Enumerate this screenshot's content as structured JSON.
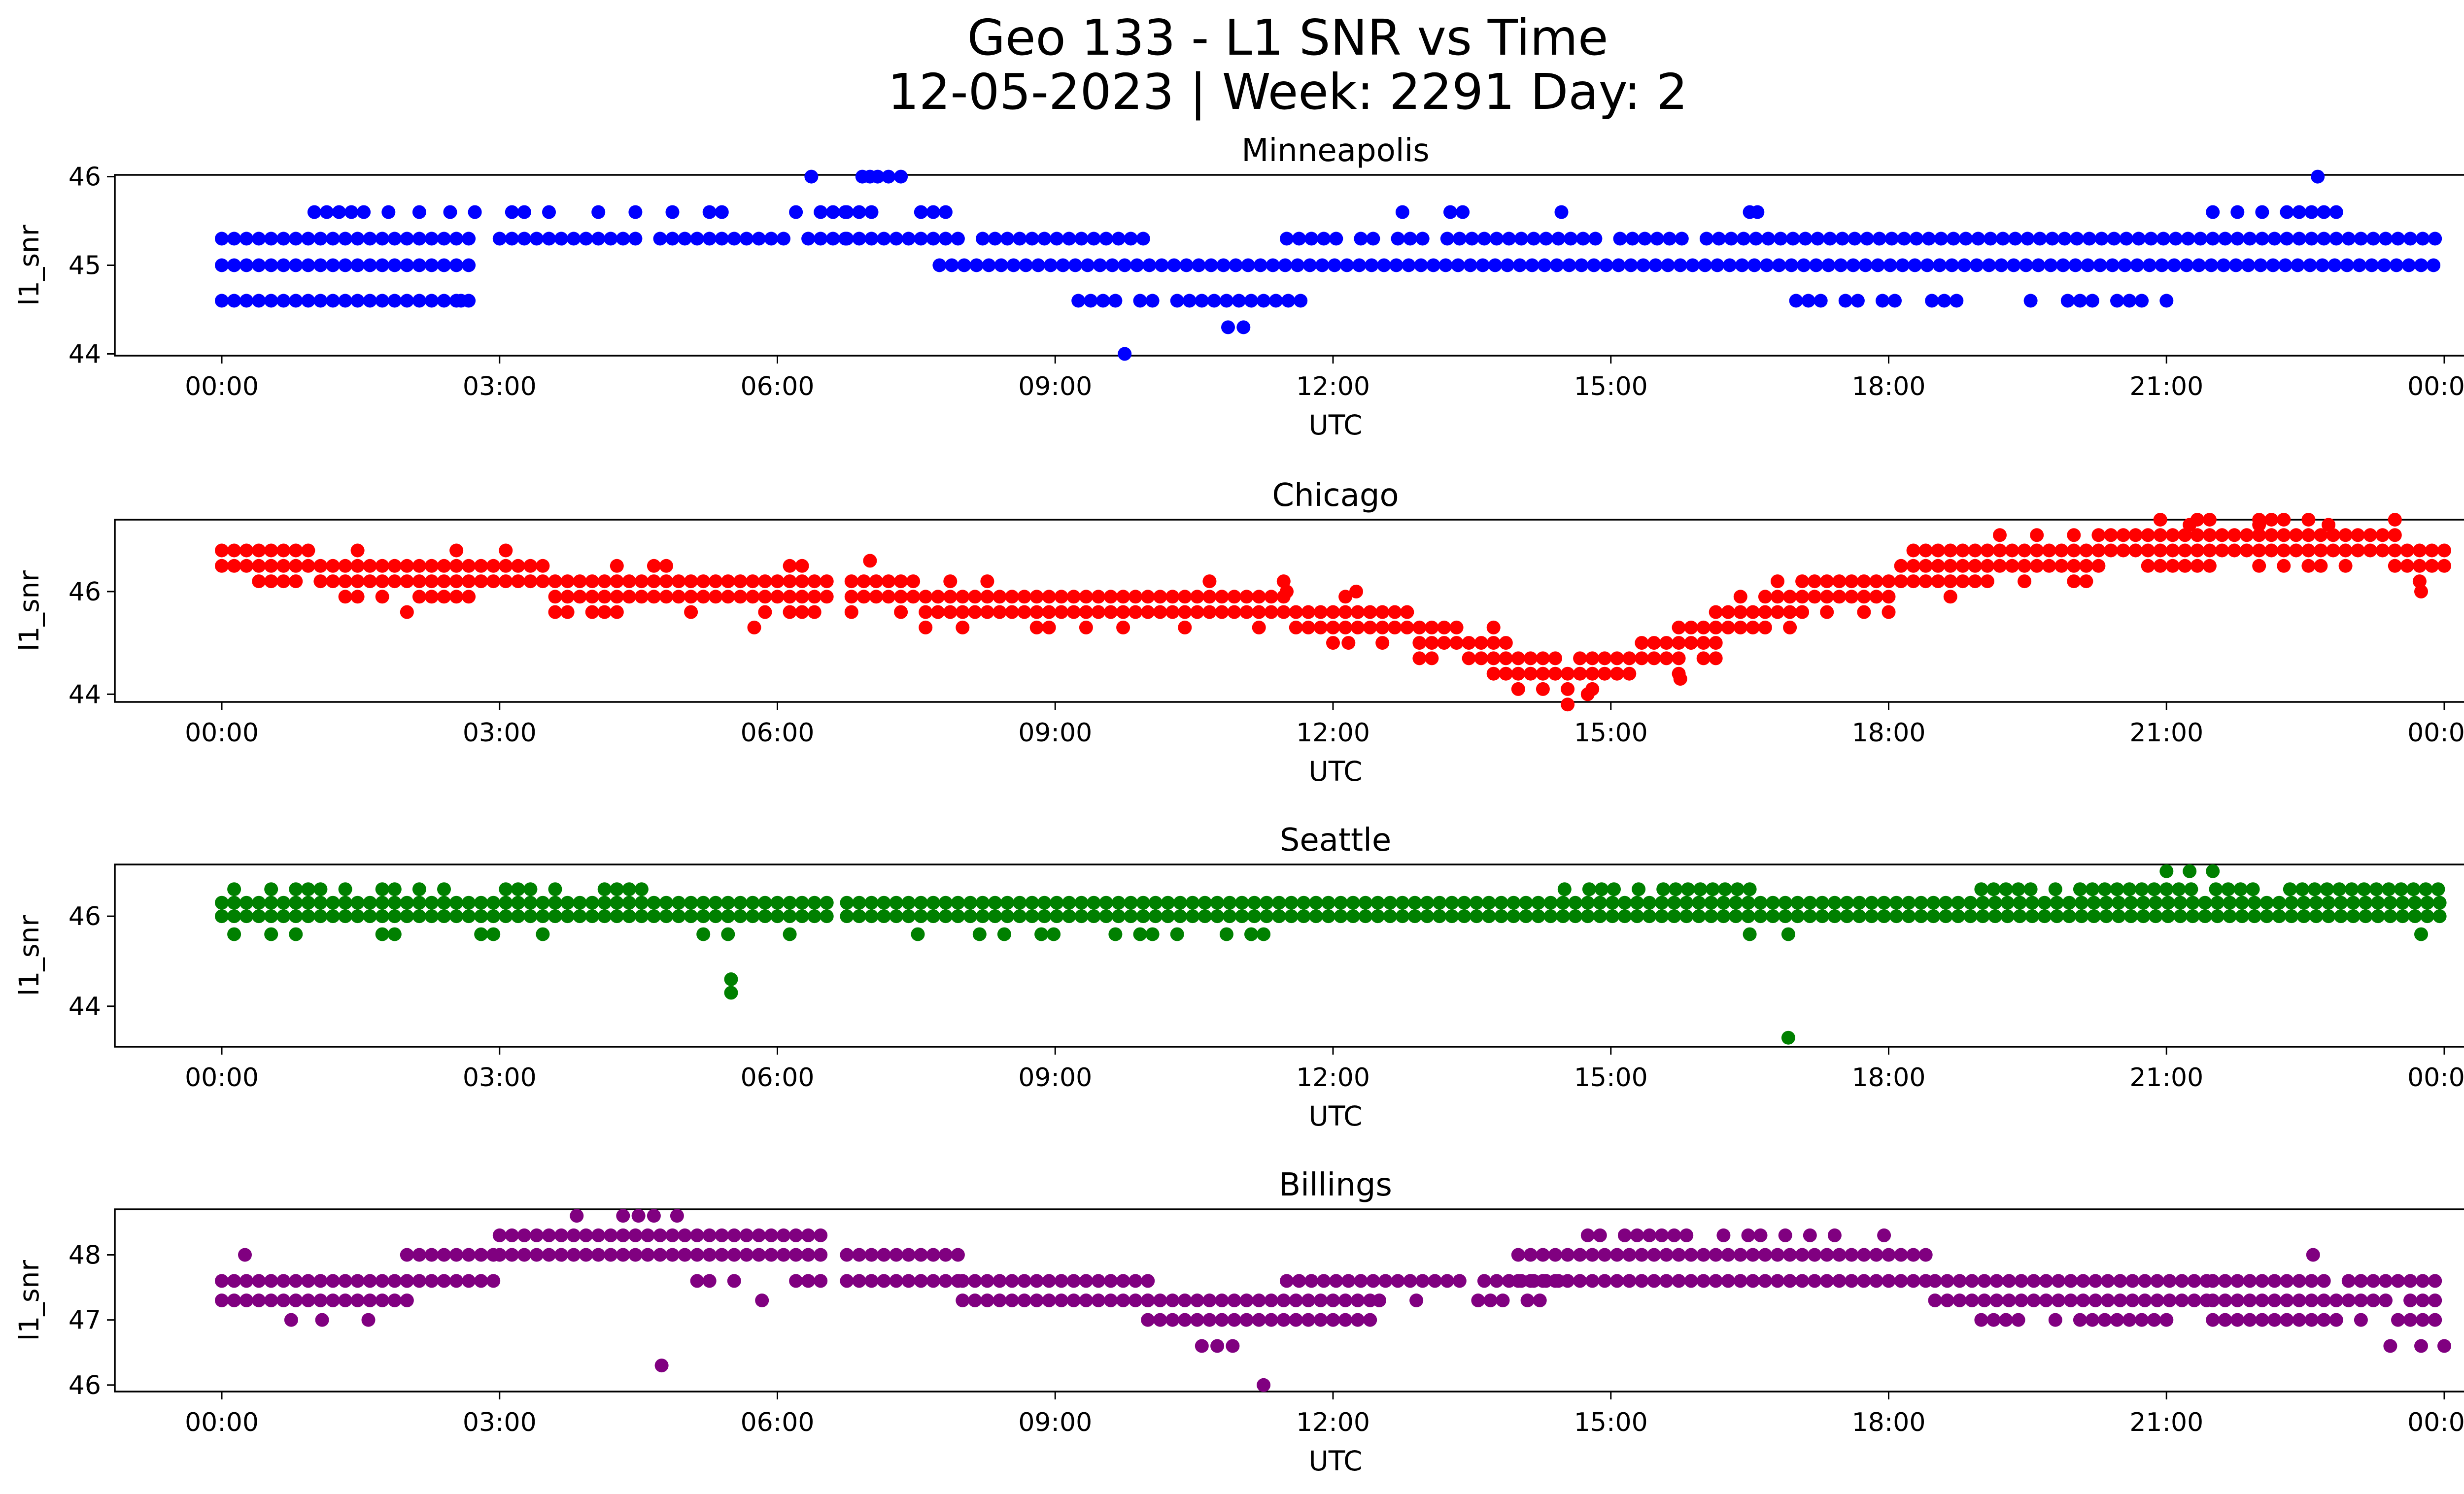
{
  "figure": {
    "title_line1": "Geo 133 - L1 SNR vs Time",
    "title_line2": "12-05-2023 | Week: 2291 Day: 2"
  },
  "chart_data": [
    {
      "type": "scatter",
      "title": "Minneapolis",
      "xlabel": "UTC",
      "ylabel": "l1_snr",
      "color": "#0000ff",
      "xlim": [
        "00:00",
        "24:00"
      ],
      "ylim": [
        43.98,
        46.02
      ],
      "xticks": [
        "00:00",
        "03:00",
        "06:00",
        "09:00",
        "12:00",
        "15:00",
        "18:00",
        "21:00",
        "00:00"
      ],
      "yticks": [
        "44",
        "45",
        "46"
      ],
      "segments": [
        {
          "from": "00:00",
          "to": "02:45",
          "snr": [
            44.6,
            45.0,
            45.3
          ],
          "density": 1.0
        },
        {
          "from": "01:00",
          "to": "06:45",
          "snr": [
            45.6
          ],
          "density": 0.5
        },
        {
          "from": "03:00",
          "to": "06:45",
          "snr": [
            45.3
          ],
          "density": 0.9
        },
        {
          "from": "06:45",
          "to": "10:00",
          "snr": [
            45.3
          ],
          "density": 0.9
        },
        {
          "from": "06:45",
          "to": "08:00",
          "snr": [
            45.6
          ],
          "density": 0.6
        },
        {
          "from": "07:45",
          "to": "24:00",
          "snr": [
            45.0
          ],
          "density": 1.0
        },
        {
          "from": "09:15",
          "to": "11:45",
          "snr": [
            44.6
          ],
          "density": 0.9
        },
        {
          "from": "11:30",
          "to": "24:00",
          "snr": [
            45.3
          ],
          "density": 0.95
        },
        {
          "from": "13:00",
          "to": "15:00",
          "snr": [
            45.6
          ],
          "density": 0.35
        },
        {
          "from": "17:00",
          "to": "21:00",
          "snr": [
            44.6
          ],
          "density": 0.5
        },
        {
          "from": "21:30",
          "to": "23:00",
          "snr": [
            45.6
          ],
          "density": 0.7
        }
      ],
      "points": [
        {
          "t": "06:22",
          "snr": 46.0
        },
        {
          "t": "06:55",
          "snr": 46.0
        },
        {
          "t": "07:00",
          "snr": 46.0
        },
        {
          "t": "07:05",
          "snr": 46.0
        },
        {
          "t": "07:12",
          "snr": 46.0
        },
        {
          "t": "07:20",
          "snr": 46.0
        },
        {
          "t": "22:38",
          "snr": 46.0
        },
        {
          "t": "09:45",
          "snr": 44.0
        },
        {
          "t": "10:52",
          "snr": 44.3
        },
        {
          "t": "11:02",
          "snr": 44.3
        },
        {
          "t": "02:08",
          "snr": 45.6
        },
        {
          "t": "02:35",
          "snr": 44.6
        },
        {
          "t": "12:45",
          "snr": 45.6
        },
        {
          "t": "16:30",
          "snr": 45.6
        },
        {
          "t": "16:35",
          "snr": 45.6
        }
      ]
    },
    {
      "type": "scatter",
      "title": "Chicago",
      "xlabel": "UTC",
      "ylabel": "l1_snr",
      "color": "#ff0000",
      "xlim": [
        "00:00",
        "24:00"
      ],
      "ylim": [
        43.85,
        47.4
      ],
      "xticks": [
        "00:00",
        "03:00",
        "06:00",
        "09:00",
        "12:00",
        "15:00",
        "18:00",
        "21:00",
        "00:00"
      ],
      "yticks": [
        "44",
        "46"
      ],
      "trend": [
        {
          "t": "00:00",
          "snr": 46.5
        },
        {
          "t": "02:00",
          "snr": 46.2
        },
        {
          "t": "04:00",
          "snr": 46.0
        },
        {
          "t": "06:00",
          "snr": 45.9
        },
        {
          "t": "08:00",
          "snr": 45.7
        },
        {
          "t": "10:00",
          "snr": 45.6
        },
        {
          "t": "12:00",
          "snr": 45.4
        },
        {
          "t": "13:00",
          "snr": 45.1
        },
        {
          "t": "14:00",
          "snr": 44.5
        },
        {
          "t": "14:30",
          "snr": 44.2
        },
        {
          "t": "15:15",
          "snr": 44.5
        },
        {
          "t": "16:00",
          "snr": 45.0
        },
        {
          "t": "17:00",
          "snr": 45.8
        },
        {
          "t": "18:00",
          "snr": 46.0
        },
        {
          "t": "19:00",
          "snr": 46.4
        },
        {
          "t": "20:00",
          "snr": 46.6
        },
        {
          "t": "21:30",
          "snr": 46.9
        },
        {
          "t": "23:00",
          "snr": 46.8
        },
        {
          "t": "24:00",
          "snr": 46.5
        }
      ],
      "gaps": [
        [
          "06:35",
          "06:45"
        ]
      ],
      "points": [
        {
          "t": "02:00",
          "snr": 45.6
        },
        {
          "t": "05:45",
          "snr": 45.3
        },
        {
          "t": "07:00",
          "snr": 46.6
        },
        {
          "t": "11:30",
          "snr": 46.0
        },
        {
          "t": "12:15",
          "snr": 46.0
        },
        {
          "t": "12:10",
          "snr": 45.0
        },
        {
          "t": "14:45",
          "snr": 44.0
        },
        {
          "t": "15:45",
          "snr": 44.3
        },
        {
          "t": "23:45",
          "snr": 46.0
        },
        {
          "t": "21:15",
          "snr": 47.3
        },
        {
          "t": "22:00",
          "snr": 47.3
        },
        {
          "t": "22:45",
          "snr": 47.3
        }
      ]
    },
    {
      "type": "scatter",
      "title": "Seattle",
      "xlabel": "UTC",
      "ylabel": "l1_snr",
      "color": "#008000",
      "xlim": [
        "00:00",
        "24:00"
      ],
      "ylim": [
        43.1,
        47.15
      ],
      "xticks": [
        "00:00",
        "03:00",
        "06:00",
        "09:00",
        "12:00",
        "15:00",
        "18:00",
        "21:00",
        "00:00"
      ],
      "yticks": [
        "44",
        "46"
      ],
      "segments": [
        {
          "from": "00:00",
          "to": "06:35",
          "snr": [
            46.0,
            46.3
          ],
          "density": 1.0
        },
        {
          "from": "06:45",
          "to": "24:00",
          "snr": [
            46.0,
            46.3
          ],
          "density": 1.0
        },
        {
          "from": "00:00",
          "to": "05:00",
          "snr": [
            46.6
          ],
          "density": 0.6
        },
        {
          "from": "14:30",
          "to": "16:30",
          "snr": [
            46.6
          ],
          "density": 0.8
        },
        {
          "from": "19:00",
          "to": "24:00",
          "snr": [
            46.6
          ],
          "density": 0.8
        },
        {
          "from": "00:00",
          "to": "06:30",
          "snr": [
            45.6
          ],
          "density": 0.2
        },
        {
          "from": "07:15",
          "to": "11:30",
          "snr": [
            45.6
          ],
          "density": 0.35
        }
      ],
      "points": [
        {
          "t": "05:30",
          "snr": 44.6
        },
        {
          "t": "05:30",
          "snr": 44.3
        },
        {
          "t": "16:55",
          "snr": 43.3
        },
        {
          "t": "21:00",
          "snr": 47.0
        },
        {
          "t": "21:15",
          "snr": 47.0
        },
        {
          "t": "21:30",
          "snr": 47.0
        },
        {
          "t": "23:45",
          "snr": 45.6
        },
        {
          "t": "16:30",
          "snr": 45.6
        },
        {
          "t": "16:55",
          "snr": 45.6
        }
      ]
    },
    {
      "type": "scatter",
      "title": "Billings",
      "xlabel": "UTC",
      "ylabel": "l1_snr",
      "color": "#800080",
      "xlim": [
        "00:00",
        "24:00"
      ],
      "ylim": [
        45.9,
        48.7
      ],
      "xticks": [
        "00:00",
        "03:00",
        "06:00",
        "09:00",
        "12:00",
        "15:00",
        "18:00",
        "21:00",
        "00:00"
      ],
      "yticks": [
        "46",
        "47",
        "48"
      ],
      "segments": [
        {
          "from": "00:00",
          "to": "02:00",
          "snr": [
            47.3,
            47.6
          ],
          "density": 1.0
        },
        {
          "from": "02:00",
          "to": "03:00",
          "snr": [
            47.6,
            48.0
          ],
          "density": 1.0
        },
        {
          "from": "03:00",
          "to": "06:35",
          "snr": [
            48.0,
            48.3
          ],
          "density": 1.0
        },
        {
          "from": "05:00",
          "to": "06:35",
          "snr": [
            47.6
          ],
          "density": 0.5
        },
        {
          "from": "06:45",
          "to": "08:00",
          "snr": [
            47.6,
            48.0
          ],
          "density": 1.0
        },
        {
          "from": "08:00",
          "to": "10:00",
          "snr": [
            47.3,
            47.6
          ],
          "density": 1.0
        },
        {
          "from": "10:00",
          "to": "12:30",
          "snr": [
            47.0,
            47.3
          ],
          "density": 1.0
        },
        {
          "from": "11:30",
          "to": "14:30",
          "snr": [
            47.6
          ],
          "density": 0.95
        },
        {
          "from": "12:30",
          "to": "14:30",
          "snr": [
            47.3
          ],
          "density": 0.6
        },
        {
          "from": "14:00",
          "to": "18:30",
          "snr": [
            47.6,
            48.0
          ],
          "density": 1.0
        },
        {
          "from": "14:45",
          "to": "18:00",
          "snr": [
            48.3
          ],
          "density": 0.7
        },
        {
          "from": "18:30",
          "to": "21:30",
          "snr": [
            47.3,
            47.6
          ],
          "density": 1.0
        },
        {
          "from": "19:00",
          "to": "21:00",
          "snr": [
            47.0
          ],
          "density": 0.8
        },
        {
          "from": "21:30",
          "to": "24:00",
          "snr": [
            47.0,
            47.3,
            47.6
          ],
          "density": 0.9
        }
      ],
      "points": [
        {
          "t": "03:50",
          "snr": 48.6
        },
        {
          "t": "04:20",
          "snr": 48.6
        },
        {
          "t": "04:30",
          "snr": 48.6
        },
        {
          "t": "04:40",
          "snr": 48.6
        },
        {
          "t": "04:55",
          "snr": 48.6
        },
        {
          "t": "04:45",
          "snr": 46.3
        },
        {
          "t": "05:50",
          "snr": 47.3
        },
        {
          "t": "10:35",
          "snr": 46.6
        },
        {
          "t": "10:45",
          "snr": 46.6
        },
        {
          "t": "10:55",
          "snr": 46.6
        },
        {
          "t": "11:15",
          "snr": 46.0
        },
        {
          "t": "23:25",
          "snr": 46.6
        },
        {
          "t": "23:45",
          "snr": 46.6
        },
        {
          "t": "24:00",
          "snr": 46.6
        },
        {
          "t": "22:35",
          "snr": 48.0
        },
        {
          "t": "00:45",
          "snr": 47.0
        },
        {
          "t": "01:05",
          "snr": 47.0
        },
        {
          "t": "01:35",
          "snr": 47.0
        },
        {
          "t": "00:15",
          "snr": 48.0
        }
      ]
    }
  ]
}
